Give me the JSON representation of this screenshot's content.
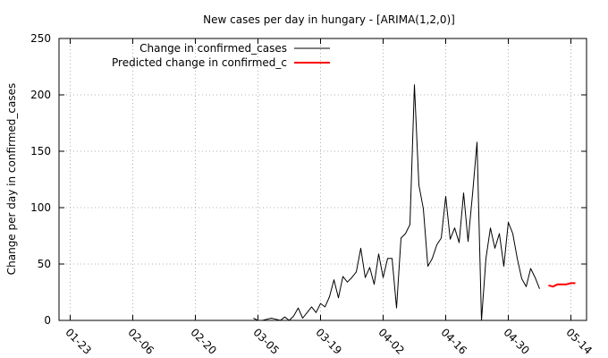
{
  "chart_data": {
    "type": "line",
    "title": "New cases per day in hungary -  [ARIMA(1,2,0)]",
    "xlabel": "",
    "ylabel": "Change per day in confirmed_cases",
    "x_tick_labels": [
      "01-23",
      "02-06",
      "02-20",
      "03-05",
      "03-19",
      "04-02",
      "04-16",
      "04-30",
      "05-14"
    ],
    "x_tick_days": [
      0,
      14,
      28,
      42,
      56,
      70,
      84,
      98,
      112
    ],
    "x_range_days": [
      -2.5,
      115.5
    ],
    "ylim": [
      0,
      250
    ],
    "y_ticks": [
      0,
      50,
      100,
      150,
      200,
      250
    ],
    "grid": true,
    "legend_position": "top-left",
    "series": [
      {
        "name": "Change in confirmed_cases",
        "color": "#000000",
        "x_start_day": 41,
        "values": [
          2,
          0,
          0,
          1,
          2,
          1,
          0,
          3,
          0,
          4,
          11,
          2,
          7,
          12,
          7,
          15,
          12,
          21,
          36,
          20,
          39,
          34,
          38,
          43,
          64,
          38,
          47,
          32,
          59,
          38,
          55,
          55,
          11,
          73,
          77,
          85,
          209,
          120,
          99,
          48,
          55,
          67,
          73,
          110,
          72,
          82,
          69,
          113,
          70,
          112,
          158,
          0,
          55,
          82,
          64,
          77,
          48,
          87,
          77,
          55,
          37,
          30,
          46,
          38,
          28
        ]
      },
      {
        "name": "Predicted change in confirmed_c",
        "color": "#ff0000",
        "x_start_day": 107,
        "values": [
          31,
          30,
          32,
          32,
          32,
          33,
          33
        ]
      }
    ]
  }
}
